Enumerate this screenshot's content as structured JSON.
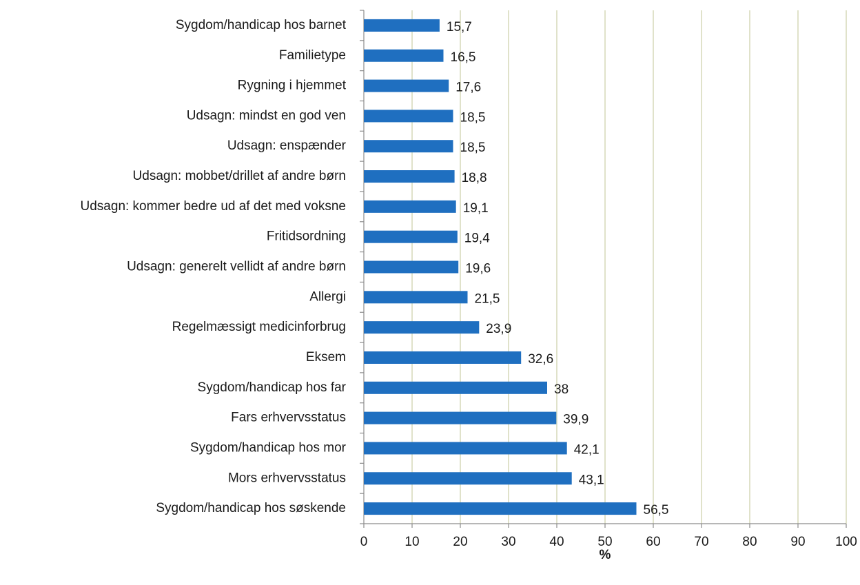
{
  "chart_data": {
    "type": "bar",
    "orientation": "horizontal",
    "x_label": "%",
    "categories": [
      "Sygdom/handicap hos barnet",
      "Familietype",
      "Rygning i hjemmet",
      "Udsagn: mindst en god ven",
      "Udsagn: enspænder",
      "Udsagn: mobbet/drillet af andre børn",
      "Udsagn: kommer bedre ud af det med voksne",
      "Fritidsordning",
      "Udsagn: generelt vellidt af andre børn",
      "Allergi",
      "Regelmæssigt medicinforbrug",
      "Eksem",
      "Sygdom/handicap hos far",
      "Fars erhvervsstatus",
      "Sygdom/handicap hos mor",
      "Mors erhvervsstatus",
      "Sygdom/handicap hos søskende"
    ],
    "values": [
      15.7,
      16.5,
      17.6,
      18.5,
      18.5,
      18.8,
      19.1,
      19.4,
      19.6,
      21.5,
      23.9,
      32.6,
      38,
      39.9,
      42.1,
      43.1,
      56.5
    ],
    "value_labels": [
      "15,7",
      "16,5",
      "17,6",
      "18,5",
      "18,5",
      "18,8",
      "19,1",
      "19,4",
      "19,6",
      "21,5",
      "23,9",
      "32,6",
      "38",
      "39,9",
      "42,1",
      "43,1",
      "56,5"
    ],
    "color": "#1f6fc0",
    "xlim": [
      0,
      100
    ],
    "xticks": [
      0,
      10,
      20,
      30,
      40,
      50,
      60,
      70,
      80,
      90,
      100
    ],
    "grid": true
  }
}
